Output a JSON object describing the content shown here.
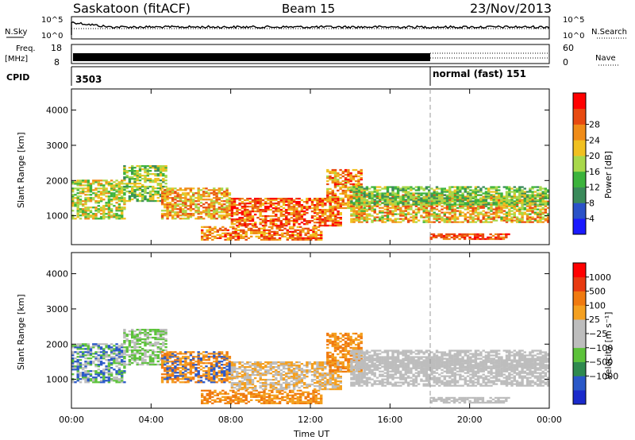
{
  "header": {
    "station": "Saskatoon (fitACF)",
    "beam": "Beam 15",
    "date": "23/Nov/2013"
  },
  "top_panels": {
    "nsky_label": "N.Sky",
    "nsky_ticks": [
      "10^5",
      "10^0"
    ],
    "nsearch_label": "N.Search",
    "freq_label": "Freq.",
    "freq_unit": "[MHz]",
    "freq_ticks": [
      "18",
      "8"
    ],
    "nave_ticks": [
      "60",
      "0"
    ],
    "nave_label": "Nave",
    "cpid_label": "CPID",
    "cpid_first": "3503",
    "cpid_second": "normal (fast) 151"
  },
  "colors": {
    "power": [
      "#1a1aff",
      "#2a52c8",
      "#3a8a5a",
      "#3cb33c",
      "#a8d84a",
      "#f0c020",
      "#f08c18",
      "#e84a10",
      "#ff0000"
    ],
    "velocity": [
      "#1a2acb",
      "#2a58c8",
      "#2f8a4f",
      "#5cc23a",
      "#bdbdbd",
      "#bdbdbd",
      "#f4a020",
      "#f07a10",
      "#e83a10",
      "#ff0000"
    ],
    "ground": "#bdbdbd"
  },
  "chart_data": [
    {
      "type": "heatmap",
      "name": "power",
      "ylabel": "Slant Range [km]",
      "yticks": [
        "1000",
        "2000",
        "3000",
        "4000"
      ],
      "ylim": [
        180,
        4600
      ],
      "colorbar_label": "Power [dB]",
      "colorbar_ticks": [
        "4",
        "8",
        "12",
        "16",
        "20",
        "24",
        "28"
      ],
      "colorbar_range": [
        0,
        30
      ]
    },
    {
      "type": "heatmap",
      "name": "velocity",
      "ylabel": "Slant Range [km]",
      "yticks": [
        "1000",
        "2000",
        "3000",
        "4000"
      ],
      "ylim": [
        180,
        4600
      ],
      "colorbar_label": "Velocity [m s⁻¹]",
      "colorbar_ticks": [
        "1000",
        "500",
        "100",
        "25",
        "−25",
        "−100",
        "−500",
        "−1000"
      ]
    }
  ],
  "xaxis": {
    "label": "Time UT",
    "ticks": [
      "00:00",
      "04:00",
      "08:00",
      "12:00",
      "16:00",
      "20:00",
      "00:00"
    ],
    "range_hours": [
      0,
      24
    ]
  }
}
